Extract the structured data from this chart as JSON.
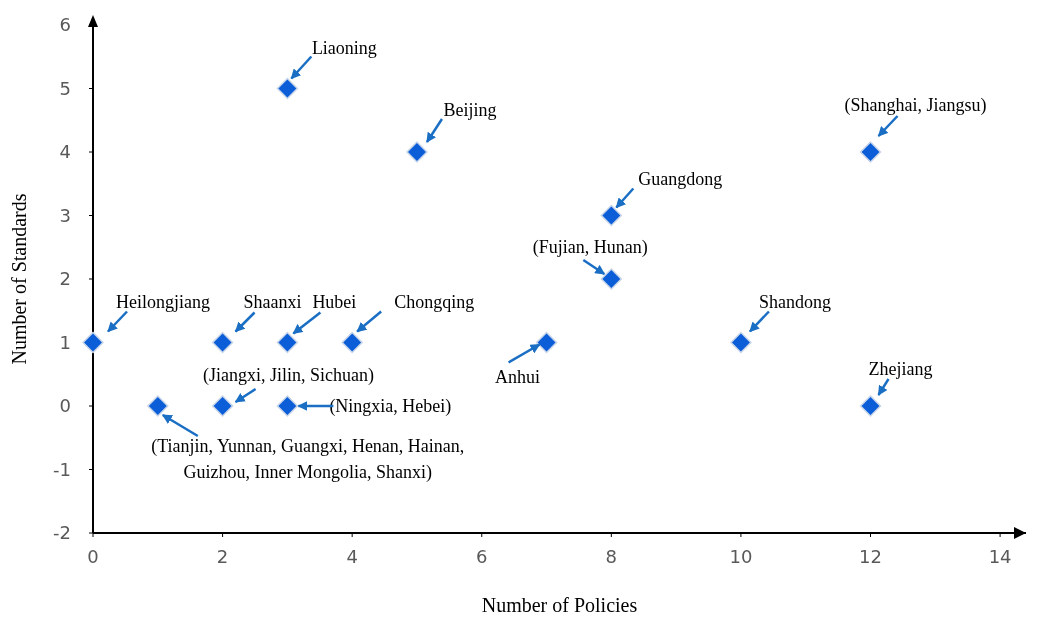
{
  "chart_data": {
    "type": "scatter",
    "xlabel": "Number of Policies",
    "ylabel": "Number of Standards",
    "xlim": [
      0,
      14.4
    ],
    "xticks": [
      0,
      2,
      4,
      6,
      8,
      10,
      12,
      14
    ],
    "ylim": [
      -2,
      6
    ],
    "yticks": [
      -2,
      -1,
      0,
      1,
      2,
      3,
      4,
      5,
      6
    ],
    "marker": "diamond",
    "series": [
      {
        "color": "#0b5ed7",
        "x": [
          0,
          1,
          2,
          2,
          3,
          3,
          3,
          4,
          5,
          7,
          8,
          8,
          10,
          12,
          12
        ],
        "values": [
          1,
          0,
          1,
          0,
          5,
          1,
          0,
          1,
          4,
          1,
          3,
          2,
          1,
          4,
          0
        ]
      }
    ],
    "annotations": [
      {
        "text": "Liaoning",
        "x": 3,
        "y": 5
      },
      {
        "text": "Beijing",
        "x": 5,
        "y": 4
      },
      {
        "text": "(Shanghai, Jiangsu)",
        "x": 12,
        "y": 4
      },
      {
        "text": "Guangdong",
        "x": 8,
        "y": 3
      },
      {
        "text": "(Fujian, Hunan)",
        "x": 8,
        "y": 2
      },
      {
        "text": "Heilongjiang",
        "x": 0,
        "y": 1
      },
      {
        "text": "Shaanxi",
        "x": 2,
        "y": 1
      },
      {
        "text": "Hubei",
        "x": 3,
        "y": 1
      },
      {
        "text": "Chongqing",
        "x": 4,
        "y": 1
      },
      {
        "text": "Anhui",
        "x": 7,
        "y": 1
      },
      {
        "text": "Shandong",
        "x": 10,
        "y": 1
      },
      {
        "text": "Zhejiang",
        "x": 12,
        "y": 0
      },
      {
        "text": "(Jiangxi, Jilin, Sichuan)",
        "x": 2,
        "y": 0
      },
      {
        "text": "(Ningxia, Hebei)",
        "x": 3,
        "y": 0
      },
      {
        "text": "(Tianjin, Yunnan, Guangxi, Henan, Hainan,\nGuizhou, Inner Mongolia, Shanxi)",
        "x": 1,
        "y": 0
      }
    ]
  }
}
